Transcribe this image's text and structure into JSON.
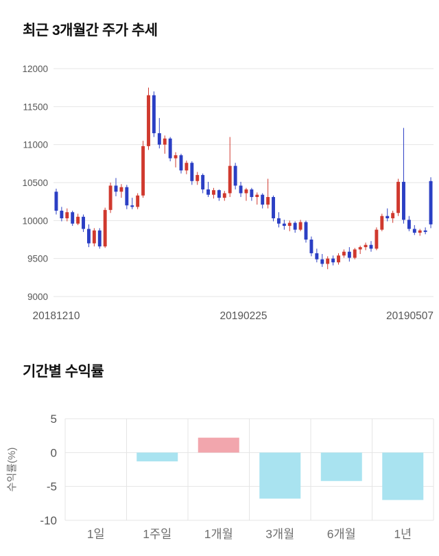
{
  "chart_data": [
    {
      "type": "candlestick",
      "title": "최근 3개월간 주가 추세",
      "ylim": [
        9000,
        12000
      ],
      "yticks": [
        12000,
        11500,
        11000,
        10500,
        10000,
        9500,
        9000
      ],
      "xticks": [
        "20181210",
        "20190225",
        "20190507"
      ],
      "grid": true,
      "legend": "none",
      "up_color": "#d0392e",
      "down_color": "#2b3fc4",
      "candles_ohlc": [
        [
          10380,
          10420,
          10080,
          10130
        ],
        [
          10130,
          10180,
          9990,
          10030
        ],
        [
          10030,
          10160,
          9990,
          10110
        ],
        [
          10110,
          10130,
          9930,
          9960
        ],
        [
          9960,
          10090,
          9940,
          10050
        ],
        [
          10050,
          10080,
          9850,
          9890
        ],
        [
          9890,
          9950,
          9650,
          9700
        ],
        [
          9700,
          9900,
          9660,
          9870
        ],
        [
          9870,
          9900,
          9630,
          9660
        ],
        [
          9660,
          10170,
          9640,
          10140
        ],
        [
          10140,
          10500,
          10100,
          10460
        ],
        [
          10460,
          10560,
          10320,
          10380
        ],
        [
          10380,
          10480,
          10300,
          10440
        ],
        [
          10440,
          10470,
          10150,
          10200
        ],
        [
          10200,
          10300,
          10150,
          10180
        ],
        [
          10180,
          10360,
          10150,
          10330
        ],
        [
          10330,
          11050,
          10300,
          10980
        ],
        [
          10980,
          11750,
          10930,
          11650
        ],
        [
          11650,
          11700,
          11100,
          11150
        ],
        [
          11150,
          11350,
          10950,
          11000
        ],
        [
          11000,
          11120,
          10880,
          11080
        ],
        [
          11080,
          11100,
          10780,
          10820
        ],
        [
          10820,
          10900,
          10700,
          10860
        ],
        [
          10860,
          10880,
          10620,
          10660
        ],
        [
          10660,
          10790,
          10610,
          10760
        ],
        [
          10760,
          10780,
          10470,
          10520
        ],
        [
          10520,
          10640,
          10470,
          10600
        ],
        [
          10600,
          10620,
          10360,
          10410
        ],
        [
          10410,
          10510,
          10310,
          10340
        ],
        [
          10340,
          10430,
          10290,
          10400
        ],
        [
          10400,
          10410,
          10260,
          10300
        ],
        [
          10300,
          10390,
          10260,
          10360
        ],
        [
          10360,
          11100,
          10310,
          10720
        ],
        [
          10720,
          10760,
          10410,
          10460
        ],
        [
          10460,
          10510,
          10310,
          10360
        ],
        [
          10360,
          10430,
          10260,
          10410
        ],
        [
          10410,
          10430,
          10260,
          10310
        ],
        [
          10310,
          10370,
          10210,
          10340
        ],
        [
          10340,
          10360,
          10160,
          10210
        ],
        [
          10210,
          10550,
          10160,
          10310
        ],
        [
          10310,
          10330,
          9990,
          10030
        ],
        [
          10030,
          10110,
          9910,
          9960
        ],
        [
          9960,
          10010,
          9880,
          9930
        ],
        [
          9930,
          10000,
          9860,
          9970
        ],
        [
          9970,
          9990,
          9840,
          9880
        ],
        [
          9880,
          10010,
          9860,
          9980
        ],
        [
          9980,
          10000,
          9710,
          9750
        ],
        [
          9750,
          9790,
          9530,
          9570
        ],
        [
          9570,
          9630,
          9450,
          9490
        ],
        [
          9490,
          9560,
          9390,
          9430
        ],
        [
          9430,
          9530,
          9360,
          9500
        ],
        [
          9500,
          9540,
          9410,
          9450
        ],
        [
          9450,
          9570,
          9420,
          9540
        ],
        [
          9540,
          9620,
          9510,
          9590
        ],
        [
          9590,
          9650,
          9460,
          9510
        ],
        [
          9510,
          9640,
          9490,
          9620
        ],
        [
          9620,
          9670,
          9560,
          9650
        ],
        [
          9650,
          9710,
          9610,
          9680
        ],
        [
          9680,
          9730,
          9590,
          9630
        ],
        [
          9630,
          9910,
          9610,
          9880
        ],
        [
          9880,
          10090,
          9860,
          10060
        ],
        [
          10060,
          10160,
          9990,
          10030
        ],
        [
          10030,
          10130,
          9970,
          10100
        ],
        [
          10100,
          10550,
          10060,
          10510
        ],
        [
          10510,
          11220,
          9960,
          10010
        ],
        [
          10010,
          10060,
          9860,
          9890
        ],
        [
          9890,
          9940,
          9810,
          9840
        ],
        [
          9840,
          9890,
          9800,
          9870
        ],
        [
          9870,
          9910,
          9820,
          9850
        ],
        [
          10520,
          10570,
          9900,
          9950
        ]
      ]
    },
    {
      "type": "bar",
      "title": "기간별 수익률",
      "ylabel": "수익률(%)",
      "categories": [
        "1일",
        "1주일",
        "1개월",
        "3개월",
        "6개월",
        "1년"
      ],
      "values": [
        0,
        -1.3,
        2.2,
        -6.8,
        -4.2,
        -7.0
      ],
      "yticks": [
        5,
        0,
        -5,
        -10
      ],
      "ylim": [
        -10,
        5
      ],
      "grid": true,
      "positive_color": "#f2a6ad",
      "negative_color": "#a9e3f0"
    }
  ]
}
